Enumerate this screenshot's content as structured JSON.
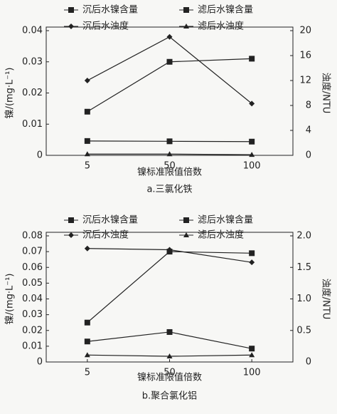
{
  "chart_data": [
    {
      "type": "line",
      "caption": "a.三氯化铁",
      "xlabel": "镍标准限值倍数",
      "ylabel": "镍/(mg·L⁻¹)",
      "y2label": "浊度/NTU",
      "categories": [
        "5",
        "50",
        "100"
      ],
      "ylim": [
        0,
        0.04
      ],
      "yticks": [
        0,
        0.01,
        0.02,
        0.03,
        0.04
      ],
      "y2lim": [
        0,
        20
      ],
      "y2ticks": [
        0,
        4,
        8,
        12,
        16,
        20
      ],
      "series": [
        {
          "name": "沉后水镍含量",
          "marker": "square",
          "color": "#222222",
          "values": [
            0.014,
            0.03,
            0.031
          ]
        },
        {
          "name": "滤后水镍含量",
          "marker": "square-line",
          "color": "#222222",
          "values": [
            0.0046,
            0.0045,
            0.0044
          ]
        },
        {
          "name": "沉后水浊度",
          "marker": "diamond",
          "color": "#222222",
          "axis": "y2",
          "values": [
            12,
            19,
            8.3
          ]
        },
        {
          "name": "滤后水浊度",
          "marker": "triangle",
          "color": "#222222",
          "axis": "y2",
          "values": [
            0.2,
            0.2,
            0.1
          ]
        }
      ]
    },
    {
      "type": "line",
      "caption": "b.聚合氯化铝",
      "xlabel": "镍标准限值倍数",
      "ylabel": "镍/(mg·L⁻¹)",
      "y2label": "浊度/NTU",
      "categories": [
        "5",
        "50",
        "100"
      ],
      "ylim": [
        0,
        0.08
      ],
      "yticks": [
        0,
        0.01,
        0.02,
        0.03,
        0.04,
        0.05,
        0.06,
        0.07,
        0.08
      ],
      "y2lim": [
        0,
        2
      ],
      "y2ticks": [
        0,
        0.5,
        {
          "value": 1,
          "label": "1.0"
        },
        1.5,
        {
          "value": 2,
          "label": "2.0"
        }
      ],
      "series": [
        {
          "name": "沉后水镍含量",
          "marker": "square",
          "color": "#222222",
          "values": [
            0.025,
            0.07,
            0.069
          ]
        },
        {
          "name": "滤后水镍含量",
          "marker": "square-line",
          "color": "#222222",
          "values": [
            0.013,
            0.019,
            0.0085
          ]
        },
        {
          "name": "沉后水浊度",
          "marker": "diamond",
          "color": "#222222",
          "axis": "y2",
          "values": [
            1.8,
            1.78,
            1.58
          ]
        },
        {
          "name": "滤后水浊度",
          "marker": "triangle",
          "color": "#222222",
          "axis": "y2",
          "values": [
            0.11,
            0.09,
            0.11
          ]
        }
      ]
    }
  ]
}
